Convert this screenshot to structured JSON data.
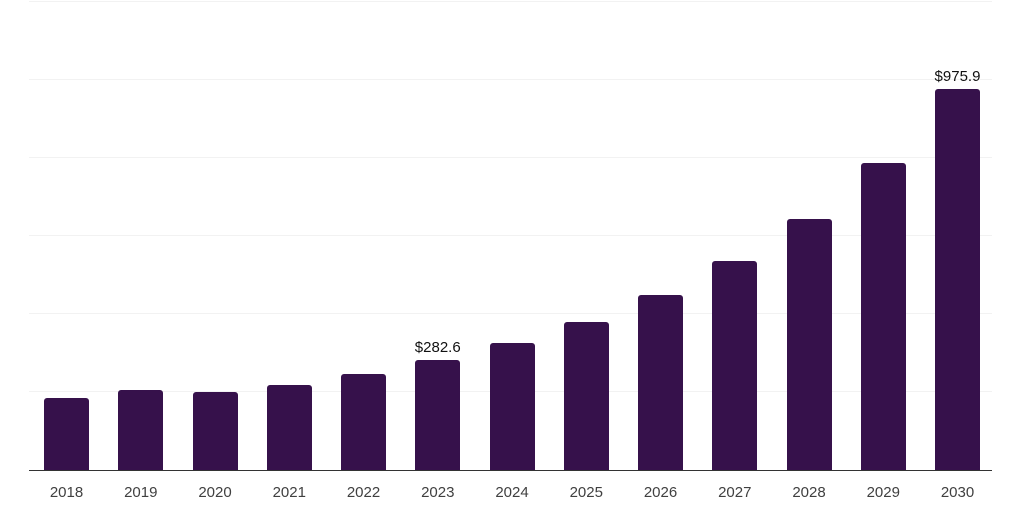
{
  "chart_data": {
    "type": "bar",
    "categories": [
      "2018",
      "2019",
      "2020",
      "2021",
      "2022",
      "2023",
      "2024",
      "2025",
      "2026",
      "2027",
      "2028",
      "2029",
      "2030"
    ],
    "values": [
      184,
      204,
      200,
      217,
      245,
      282.6,
      324,
      379,
      447,
      534,
      643,
      786,
      975.9
    ],
    "data_labels": {
      "2023": "$282.6",
      "2030": "$975.9"
    },
    "ylim": [
      0,
      1200
    ],
    "gridline_step": 200,
    "grid": true,
    "legend": "none",
    "y_axis_tick_labels_visible": false,
    "colors": {
      "bar": "#36114B",
      "gridline": "#f2f2f2",
      "axis": "#333333",
      "tick_label": "#404040",
      "data_label": "#111111",
      "background": "#ffffff"
    }
  }
}
